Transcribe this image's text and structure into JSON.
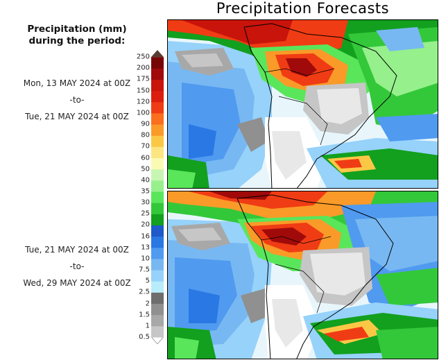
{
  "title": "Precipitation Forecasts",
  "legend": {
    "heading_line1": "Precipitation (mm)",
    "heading_line2": "during the period:",
    "levels": [
      "0.5",
      "1",
      "1.5",
      "2",
      "2.5",
      "5",
      "7.5",
      "10",
      "13",
      "16",
      "20",
      "25",
      "30",
      "35",
      "40",
      "50",
      "60",
      "70",
      "80",
      "90",
      "100",
      "120",
      "150",
      "175",
      "200",
      "250"
    ],
    "colors": [
      "#fefefe",
      "#c6c6c6",
      "#a8a8a8",
      "#909090",
      "#6e6e6e",
      "#b8ecfb",
      "#96d2fa",
      "#78b8f2",
      "#509af0",
      "#2a78e4",
      "#1e5ac8",
      "#12a01e",
      "#33c83a",
      "#5ae65a",
      "#96f08c",
      "#c8f5b4",
      "#fbfab4",
      "#fbe682",
      "#fbc846",
      "#fa9a28",
      "#fa6e1e",
      "#f03c14",
      "#dc1e0f",
      "#c8140a",
      "#a00a0a",
      "#780505",
      "#5a3c32"
    ]
  },
  "periods": [
    {
      "start": "Mon, 13 MAY 2024 at 00Z",
      "separator": "-to-",
      "end": "Tue, 21 MAY 2024 at 00Z"
    },
    {
      "start": "Tue, 21 MAY 2024 at 00Z",
      "separator": "-to-",
      "end": "Wed, 29 MAY 2024 at 00Z"
    }
  ]
}
